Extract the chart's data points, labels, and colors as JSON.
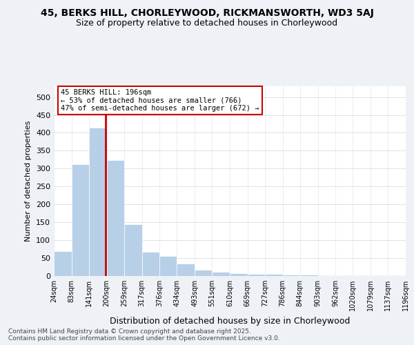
{
  "title": "45, BERKS HILL, CHORLEYWOOD, RICKMANSWORTH, WD3 5AJ",
  "subtitle": "Size of property relative to detached houses in Chorleywood",
  "xlabel": "Distribution of detached houses by size in Chorleywood",
  "ylabel": "Number of detached properties",
  "annotation_line1": "45 BERKS HILL: 196sqm",
  "annotation_line2": "← 53% of detached houses are smaller (766)",
  "annotation_line3": "47% of semi-detached houses are larger (672) →",
  "property_size_sqm": 196,
  "bin_edges": [
    24,
    83,
    141,
    200,
    259,
    317,
    376,
    434,
    493,
    551,
    610,
    669,
    727,
    786,
    844,
    903,
    962,
    1020,
    1079,
    1137,
    1196
  ],
  "bar_heights": [
    70,
    313,
    415,
    323,
    144,
    68,
    55,
    35,
    18,
    12,
    8,
    6,
    5,
    4,
    3,
    2,
    2,
    1,
    1,
    1
  ],
  "bar_color": "#b8cfe8",
  "highlight_color": "#cc0000",
  "ylim": [
    0,
    530
  ],
  "yticks": [
    0,
    50,
    100,
    150,
    200,
    250,
    300,
    350,
    400,
    450,
    500
  ],
  "footer": "Contains HM Land Registry data © Crown copyright and database right 2025.\nContains public sector information licensed under the Open Government Licence v3.0.",
  "bg_color": "#eef2f7",
  "plot_bg_color": "#ffffff"
}
